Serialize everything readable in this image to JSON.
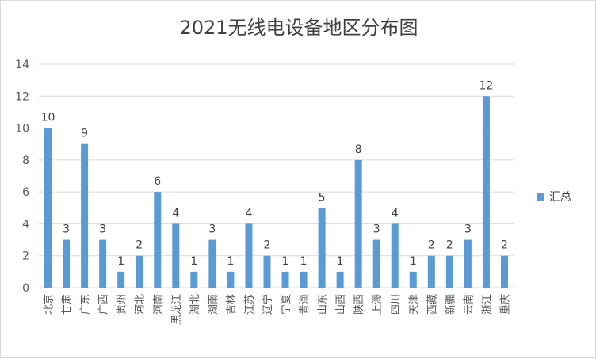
{
  "chart_data": {
    "type": "bar",
    "title": "2021无线电设备地区分布图",
    "xlabel": "",
    "ylabel": "",
    "ylim": [
      0,
      14
    ],
    "yticks": [
      0,
      2,
      4,
      6,
      8,
      10,
      12,
      14
    ],
    "grid": true,
    "legend_position": "right",
    "bar_color": "#5b9bd5",
    "categories": [
      "北京",
      "甘肃",
      "广东",
      "广西",
      "贵州",
      "河北",
      "河南",
      "黑龙江",
      "湖北",
      "湖南",
      "吉林",
      "江苏",
      "辽宁",
      "宁夏",
      "青海",
      "山东",
      "山西",
      "陕西",
      "上海",
      "四川",
      "天津",
      "西藏",
      "新疆",
      "云南",
      "浙江",
      "重庆"
    ],
    "series": [
      {
        "name": "汇总",
        "values": [
          10,
          3,
          9,
          3,
          1,
          2,
          6,
          4,
          1,
          3,
          1,
          4,
          2,
          1,
          1,
          5,
          1,
          8,
          3,
          4,
          1,
          2,
          2,
          3,
          12,
          2
        ]
      }
    ]
  }
}
